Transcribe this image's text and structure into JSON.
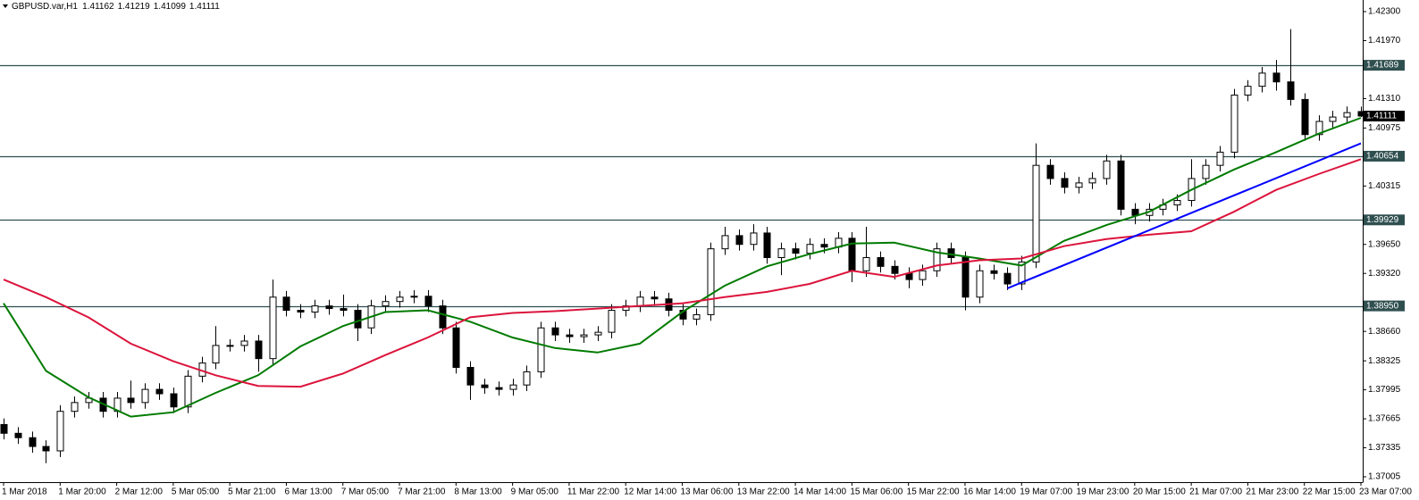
{
  "chart_data": {
    "type": "candlestick",
    "symbol": "GBPUSD.var,H1",
    "categories": [
      "1 Mar 2018",
      null,
      null,
      null,
      "1 Mar 20:00",
      null,
      null,
      null,
      "2 Mar 12:00",
      null,
      null,
      null,
      "5 Mar 05:00",
      null,
      null,
      null,
      "5 Mar 21:00",
      null,
      null,
      null,
      "6 Mar 13:00",
      null,
      null,
      null,
      "7 Mar 05:00",
      null,
      null,
      null,
      "7 Mar 21:00",
      null,
      null,
      null,
      "8 Mar 13:00",
      null,
      null,
      null,
      "9 Mar 05:00",
      null,
      null,
      null,
      "11 Mar 22:00",
      null,
      null,
      null,
      "12 Mar 14:00",
      null,
      null,
      null,
      "13 Mar 06:00",
      null,
      null,
      null,
      "13 Mar 22:00",
      null,
      null,
      null,
      "14 Mar 14:00",
      null,
      null,
      null,
      "15 Mar 06:00",
      null,
      null,
      null,
      "15 Mar 22:00",
      null,
      null,
      null,
      "16 Mar 14:00",
      null,
      null,
      null,
      "19 Mar 07:00",
      null,
      null,
      null,
      "19 Mar 23:00",
      null,
      null,
      null,
      "20 Mar 15:00",
      null,
      null,
      null,
      "21 Mar 07:00",
      null,
      null,
      null,
      "21 Mar 23:00",
      null,
      null,
      null,
      "22 Mar 15:00",
      null,
      null,
      null,
      "23 Mar 07:00"
    ],
    "open": [
      1.376,
      1.375,
      1.3745,
      1.3735,
      1.373,
      1.3775,
      1.3785,
      1.379,
      1.3775,
      1.379,
      1.3785,
      1.38,
      1.3795,
      1.378,
      1.3815,
      1.383,
      1.385,
      1.385,
      1.3855,
      1.3835,
      1.3905,
      1.389,
      1.3888,
      1.3895,
      1.3892,
      1.389,
      1.387,
      1.3895,
      1.39,
      1.3905,
      1.3906,
      1.3895,
      1.387,
      1.3825,
      1.3805,
      1.3802,
      1.38,
      1.3805,
      1.382,
      1.387,
      1.3862,
      1.386,
      1.3862,
      1.3865,
      1.389,
      1.3895,
      1.3905,
      1.3903,
      1.389,
      1.388,
      1.3885,
      1.396,
      1.3975,
      1.3965,
      1.3978,
      1.395,
      1.396,
      1.3955,
      1.3965,
      1.3962,
      1.3972,
      1.3935,
      1.395,
      1.394,
      1.3932,
      1.3925,
      1.3935,
      1.396,
      1.395,
      1.3905,
      1.3935,
      1.3932,
      1.392,
      1.3945,
      1.4055,
      1.404,
      1.403,
      1.4035,
      1.404,
      1.406,
      1.4005,
      1.3998,
      1.4005,
      1.401,
      1.4015,
      1.404,
      1.4055,
      1.407,
      1.4135,
      1.4145,
      1.416,
      1.415,
      1.413,
      1.409,
      1.4105,
      1.411,
      1.41162
    ],
    "high": [
      1.3767,
      1.3757,
      1.3752,
      1.3742,
      1.3782,
      1.3792,
      1.3797,
      1.3797,
      1.3797,
      1.381,
      1.3807,
      1.3807,
      1.3802,
      1.3822,
      1.3837,
      1.3872,
      1.3857,
      1.3862,
      1.3862,
      1.3925,
      1.3912,
      1.3897,
      1.3902,
      1.3902,
      1.3908,
      1.3897,
      1.3902,
      1.3907,
      1.3912,
      1.3913,
      1.3913,
      1.3902,
      1.3877,
      1.3832,
      1.3812,
      1.3809,
      1.3812,
      1.3827,
      1.3877,
      1.3877,
      1.3869,
      1.3869,
      1.3872,
      1.3897,
      1.3902,
      1.3912,
      1.3912,
      1.391,
      1.3897,
      1.3892,
      1.3967,
      1.3985,
      1.3982,
      1.3988,
      1.3985,
      1.3967,
      1.3967,
      1.3972,
      1.3972,
      1.3979,
      1.3979,
      1.3985,
      1.3957,
      1.3947,
      1.3939,
      1.3942,
      1.3967,
      1.3967,
      1.3957,
      1.3942,
      1.3942,
      1.3939,
      1.3952,
      1.408,
      1.4062,
      1.4047,
      1.4042,
      1.4047,
      1.4067,
      1.4067,
      1.4012,
      1.4012,
      1.4017,
      1.4022,
      1.4062,
      1.4062,
      1.4077,
      1.4142,
      1.4152,
      1.4167,
      1.4175,
      1.421,
      1.4137,
      1.4112,
      1.4117,
      1.4122,
      1.41219
    ],
    "low": [
      1.3743,
      1.3738,
      1.3728,
      1.3716,
      1.3723,
      1.3768,
      1.3778,
      1.3768,
      1.3768,
      1.3778,
      1.3778,
      1.3788,
      1.3773,
      1.3773,
      1.3808,
      1.3823,
      1.3843,
      1.3843,
      1.382,
      1.3828,
      1.3883,
      1.3881,
      1.3881,
      1.3885,
      1.3883,
      1.3855,
      1.3863,
      1.3888,
      1.3893,
      1.3898,
      1.3888,
      1.3863,
      1.3818,
      1.3788,
      1.3795,
      1.3793,
      1.3793,
      1.3798,
      1.3813,
      1.3855,
      1.3853,
      1.3853,
      1.3855,
      1.3858,
      1.3883,
      1.3888,
      1.3896,
      1.3883,
      1.3873,
      1.3873,
      1.3878,
      1.3953,
      1.3958,
      1.3958,
      1.3943,
      1.393,
      1.3948,
      1.3948,
      1.3955,
      1.3955,
      1.3922,
      1.3928,
      1.3933,
      1.3925,
      1.3915,
      1.3918,
      1.3928,
      1.3943,
      1.389,
      1.3898,
      1.3925,
      1.3913,
      1.3913,
      1.3938,
      1.4033,
      1.4023,
      1.4023,
      1.4028,
      1.4033,
      1.3998,
      1.3988,
      1.3991,
      1.3998,
      1.4003,
      1.4008,
      1.4033,
      1.4048,
      1.4063,
      1.4128,
      1.4138,
      1.414,
      1.4123,
      1.4083,
      1.4083,
      1.4098,
      1.4103,
      1.41099
    ],
    "close": [
      1.375,
      1.3745,
      1.3735,
      1.373,
      1.3775,
      1.3785,
      1.379,
      1.3775,
      1.379,
      1.3785,
      1.38,
      1.3795,
      1.378,
      1.3815,
      1.383,
      1.385,
      1.385,
      1.3855,
      1.3835,
      1.3905,
      1.389,
      1.3888,
      1.3895,
      1.3892,
      1.389,
      1.387,
      1.3895,
      1.39,
      1.3905,
      1.3906,
      1.3895,
      1.387,
      1.3825,
      1.3805,
      1.3802,
      1.38,
      1.3805,
      1.382,
      1.387,
      1.3862,
      1.386,
      1.3862,
      1.3865,
      1.389,
      1.3895,
      1.3905,
      1.3903,
      1.389,
      1.388,
      1.3885,
      1.396,
      1.3975,
      1.3965,
      1.3978,
      1.395,
      1.396,
      1.3955,
      1.3965,
      1.3962,
      1.3972,
      1.3935,
      1.395,
      1.394,
      1.3932,
      1.3925,
      1.3935,
      1.396,
      1.395,
      1.3905,
      1.3935,
      1.3932,
      1.392,
      1.3945,
      1.4055,
      1.404,
      1.403,
      1.4035,
      1.404,
      1.406,
      1.4005,
      1.3998,
      1.4005,
      1.401,
      1.4015,
      1.404,
      1.4055,
      1.407,
      1.4135,
      1.4145,
      1.416,
      1.415,
      1.413,
      1.409,
      1.4105,
      1.411,
      1.4115,
      1.41111
    ],
    "up_color": "#ffffff",
    "down_color": "#000000",
    "overlays": [
      {
        "color": "#007b00",
        "x": [
          0,
          3,
          6,
          9,
          12,
          15,
          18,
          21,
          24,
          27,
          30,
          33,
          36,
          39,
          42,
          45,
          48,
          51,
          54,
          57,
          60,
          63,
          66,
          69,
          72,
          75,
          78,
          81,
          84,
          87,
          90,
          93,
          96
        ],
        "values": [
          1.3898,
          1.3821,
          1.3791,
          1.3769,
          1.3774,
          1.3796,
          1.3816,
          1.3849,
          1.3872,
          1.3888,
          1.389,
          1.3877,
          1.3859,
          1.3847,
          1.3842,
          1.3852,
          1.3888,
          1.3918,
          1.394,
          1.3954,
          1.3966,
          1.3967,
          1.3956,
          1.3949,
          1.3941,
          1.3969,
          1.3987,
          1.4002,
          1.4027,
          1.405,
          1.407,
          1.4091,
          1.4109
        ]
      },
      {
        "color": "#dc143c",
        "x": [
          0,
          3,
          6,
          9,
          12,
          15,
          18,
          21,
          24,
          27,
          30,
          33,
          36,
          39,
          42,
          45,
          48,
          51,
          54,
          57,
          60,
          63,
          66,
          69,
          72,
          75,
          78,
          81,
          84,
          87,
          90,
          93,
          96
        ],
        "values": [
          1.3925,
          1.3905,
          1.3882,
          1.3852,
          1.3832,
          1.3816,
          1.3804,
          1.3803,
          1.3818,
          1.3839,
          1.3859,
          1.3882,
          1.3887,
          1.3889,
          1.3892,
          1.3895,
          1.3898,
          1.3905,
          1.3911,
          1.392,
          1.3935,
          1.3928,
          1.3941,
          1.3947,
          1.3949,
          1.3963,
          1.3971,
          1.3976,
          1.398,
          1.4002,
          1.4027,
          1.4045,
          1.4062
        ]
      },
      {
        "color": "#0000ff",
        "x": [
          71,
          96
        ],
        "values": [
          1.3915,
          1.408
        ]
      }
    ],
    "levels": [
      1.41689,
      1.40654,
      1.39929,
      {
        "value": 1.3895,
        "label": "1.38950"
      }
    ],
    "level_color": "#2f4f4f",
    "ylim": [
      1.36944,
      1.42432
    ],
    "yticks": [
      {
        "value": 1.423,
        "label": "1.42300"
      },
      {
        "value": 1.4197,
        "label": "1.41970"
      },
      {
        "value": 1.4131,
        "label": "1.41310"
      },
      1.40975,
      1.40315,
      {
        "value": 1.3965,
        "label": "1.39650"
      },
      {
        "value": 1.3932,
        "label": "1.39320"
      },
      {
        "value": 1.3866,
        "label": "1.38660"
      },
      1.38325,
      1.37995,
      1.37665,
      1.37335,
      1.37005
    ]
  }
}
